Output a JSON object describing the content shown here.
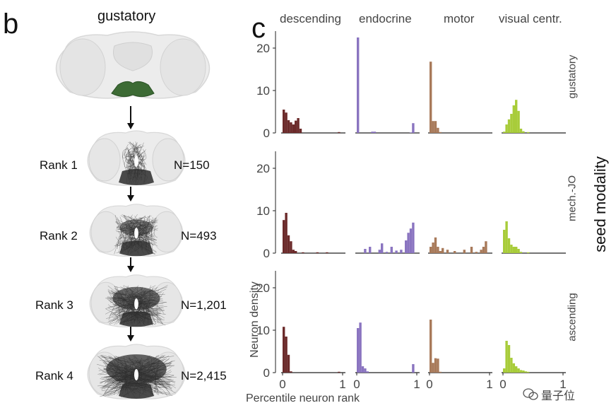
{
  "panel_b": {
    "letter": "b",
    "title": "gustatory",
    "ranks": [
      {
        "label": "Rank 1",
        "n": "N=150",
        "density": 0.25
      },
      {
        "label": "Rank 2",
        "n": "N=493",
        "density": 0.55
      },
      {
        "label": "Rank 3",
        "n": "N=1,201",
        "density": 0.78
      },
      {
        "label": "Rank 4",
        "n": "N=2,415",
        "density": 0.95
      }
    ],
    "colors": {
      "brain_outline": "#d8d8d8",
      "brain_fill": "#ececec",
      "gustatory_seed": "#3d6b35",
      "neurons": "#2d2d2d"
    }
  },
  "panel_c": {
    "letter": "c",
    "axis_title_y": "Neuron density",
    "axis_title_x": "Percentile neuron rank",
    "seed_title": "seed modality",
    "watermark": "量子位",
    "chart_data": {
      "type": "bar",
      "columns": [
        "descending",
        "endocrine",
        "motor",
        "visual centr."
      ],
      "rows": [
        "gustatory",
        "mech.-JO",
        "ascending"
      ],
      "x_ticks": [
        "0",
        "1"
      ],
      "y_ticks": [
        "0",
        "10",
        "20"
      ],
      "ylim": [
        0,
        24
      ],
      "xlim": [
        0,
        1
      ],
      "bin_width": 0.04,
      "colors": {
        "descending": "#6b2a2a",
        "endocrine": "#8a74c0",
        "motor": "#a87a5a",
        "visual centr.": "#a8cc3a"
      },
      "panels": [
        {
          "row": "gustatory",
          "col": "descending",
          "bins": [
            {
              "x": 0,
              "y": 5.5
            },
            {
              "x": 0.04,
              "y": 4.8
            },
            {
              "x": 0.08,
              "y": 3.0
            },
            {
              "x": 0.12,
              "y": 2.5
            },
            {
              "x": 0.16,
              "y": 2.0
            },
            {
              "x": 0.2,
              "y": 2.9
            },
            {
              "x": 0.24,
              "y": 3.5
            },
            {
              "x": 0.28,
              "y": 1.0
            },
            {
              "x": 0.92,
              "y": 0.2
            }
          ]
        },
        {
          "row": "gustatory",
          "col": "endocrine",
          "bins": [
            {
              "x": 0,
              "y": 22.5
            },
            {
              "x": 0.24,
              "y": 0.3
            },
            {
              "x": 0.28,
              "y": 0.3
            },
            {
              "x": 0.88,
              "y": 0.1
            },
            {
              "x": 0.92,
              "y": 2.3
            }
          ]
        },
        {
          "row": "gustatory",
          "col": "motor",
          "bins": [
            {
              "x": 0,
              "y": 16.8
            },
            {
              "x": 0.04,
              "y": 2.8
            },
            {
              "x": 0.08,
              "y": 2.8
            },
            {
              "x": 0.12,
              "y": 1.2
            },
            {
              "x": 0.16,
              "y": 0.2
            }
          ]
        },
        {
          "row": "gustatory",
          "col": "visual centr.",
          "bins": [
            {
              "x": 0,
              "y": 0.3
            },
            {
              "x": 0.04,
              "y": 2.0
            },
            {
              "x": 0.08,
              "y": 3.2
            },
            {
              "x": 0.12,
              "y": 4.5
            },
            {
              "x": 0.16,
              "y": 6.5
            },
            {
              "x": 0.2,
              "y": 7.8
            },
            {
              "x": 0.24,
              "y": 5.2
            },
            {
              "x": 0.28,
              "y": 1.0
            },
            {
              "x": 0.32,
              "y": 0.4
            },
            {
              "x": 0.4,
              "y": 0.2
            }
          ]
        },
        {
          "row": "mech.-JO",
          "col": "descending",
          "bins": [
            {
              "x": 0,
              "y": 7.8
            },
            {
              "x": 0.04,
              "y": 9.5
            },
            {
              "x": 0.08,
              "y": 4.2
            },
            {
              "x": 0.12,
              "y": 2.8
            },
            {
              "x": 0.16,
              "y": 0.8
            },
            {
              "x": 0.2,
              "y": 0.5
            },
            {
              "x": 0.32,
              "y": 0.2
            },
            {
              "x": 0.56,
              "y": 0.2
            },
            {
              "x": 0.72,
              "y": 0.2
            }
          ]
        },
        {
          "row": "mech.-JO",
          "col": "endocrine",
          "bins": [
            {
              "x": 0.12,
              "y": 1.0
            },
            {
              "x": 0.2,
              "y": 1.5
            },
            {
              "x": 0.36,
              "y": 0.8
            },
            {
              "x": 0.4,
              "y": 2.3
            },
            {
              "x": 0.48,
              "y": 0.3
            },
            {
              "x": 0.56,
              "y": 1.5
            },
            {
              "x": 0.64,
              "y": 0.6
            },
            {
              "x": 0.72,
              "y": 0.8
            },
            {
              "x": 0.8,
              "y": 3.0
            },
            {
              "x": 0.84,
              "y": 4.8
            },
            {
              "x": 0.88,
              "y": 5.8
            },
            {
              "x": 0.92,
              "y": 7.2
            }
          ]
        },
        {
          "row": "mech.-JO",
          "col": "motor",
          "bins": [
            {
              "x": 0,
              "y": 1.5
            },
            {
              "x": 0.04,
              "y": 2.5
            },
            {
              "x": 0.08,
              "y": 3.7
            },
            {
              "x": 0.12,
              "y": 1.5
            },
            {
              "x": 0.16,
              "y": 0.5
            },
            {
              "x": 0.2,
              "y": 1.2
            },
            {
              "x": 0.28,
              "y": 0.8
            },
            {
              "x": 0.4,
              "y": 0.5
            },
            {
              "x": 0.56,
              "y": 0.8
            },
            {
              "x": 0.68,
              "y": 1.5
            },
            {
              "x": 0.76,
              "y": 0.3
            },
            {
              "x": 0.84,
              "y": 0.8
            },
            {
              "x": 0.88,
              "y": 1.5
            },
            {
              "x": 0.92,
              "y": 2.8
            }
          ]
        },
        {
          "row": "mech.-JO",
          "col": "visual centr.",
          "bins": [
            {
              "x": 0,
              "y": 5.5
            },
            {
              "x": 0.04,
              "y": 7.5
            },
            {
              "x": 0.08,
              "y": 3.5
            },
            {
              "x": 0.12,
              "y": 2.0
            },
            {
              "x": 0.16,
              "y": 1.5
            },
            {
              "x": 0.2,
              "y": 1.5
            },
            {
              "x": 0.24,
              "y": 1.0
            },
            {
              "x": 0.28,
              "y": 0.3
            },
            {
              "x": 0.4,
              "y": 0.2
            }
          ]
        },
        {
          "row": "ascending",
          "col": "descending",
          "bins": [
            {
              "x": 0,
              "y": 10.8
            },
            {
              "x": 0.04,
              "y": 8.5
            },
            {
              "x": 0.08,
              "y": 4.2
            },
            {
              "x": 0.12,
              "y": 0.3
            },
            {
              "x": 0.92,
              "y": 0.2
            }
          ]
        },
        {
          "row": "ascending",
          "col": "endocrine",
          "bins": [
            {
              "x": 0,
              "y": 10.5
            },
            {
              "x": 0.04,
              "y": 11.8
            },
            {
              "x": 0.08,
              "y": 1.5
            },
            {
              "x": 0.12,
              "y": 1.0
            },
            {
              "x": 0.16,
              "y": 0.3
            },
            {
              "x": 0.92,
              "y": 2.0
            }
          ]
        },
        {
          "row": "ascending",
          "col": "motor",
          "bins": [
            {
              "x": 0,
              "y": 12.5
            },
            {
              "x": 0.04,
              "y": 2.3
            },
            {
              "x": 0.08,
              "y": 3.4
            },
            {
              "x": 0.12,
              "y": 3.3
            },
            {
              "x": 0.16,
              "y": 0.2
            }
          ]
        },
        {
          "row": "ascending",
          "col": "visual centr.",
          "bins": [
            {
              "x": 0,
              "y": 1.0
            },
            {
              "x": 0.04,
              "y": 7.5
            },
            {
              "x": 0.08,
              "y": 6.5
            },
            {
              "x": 0.12,
              "y": 3.5
            },
            {
              "x": 0.16,
              "y": 2.2
            },
            {
              "x": 0.2,
              "y": 1.5
            },
            {
              "x": 0.24,
              "y": 1.0
            },
            {
              "x": 0.28,
              "y": 0.6
            },
            {
              "x": 0.32,
              "y": 0.5
            },
            {
              "x": 0.36,
              "y": 0.3
            },
            {
              "x": 0.4,
              "y": 0.2
            }
          ]
        }
      ]
    }
  }
}
